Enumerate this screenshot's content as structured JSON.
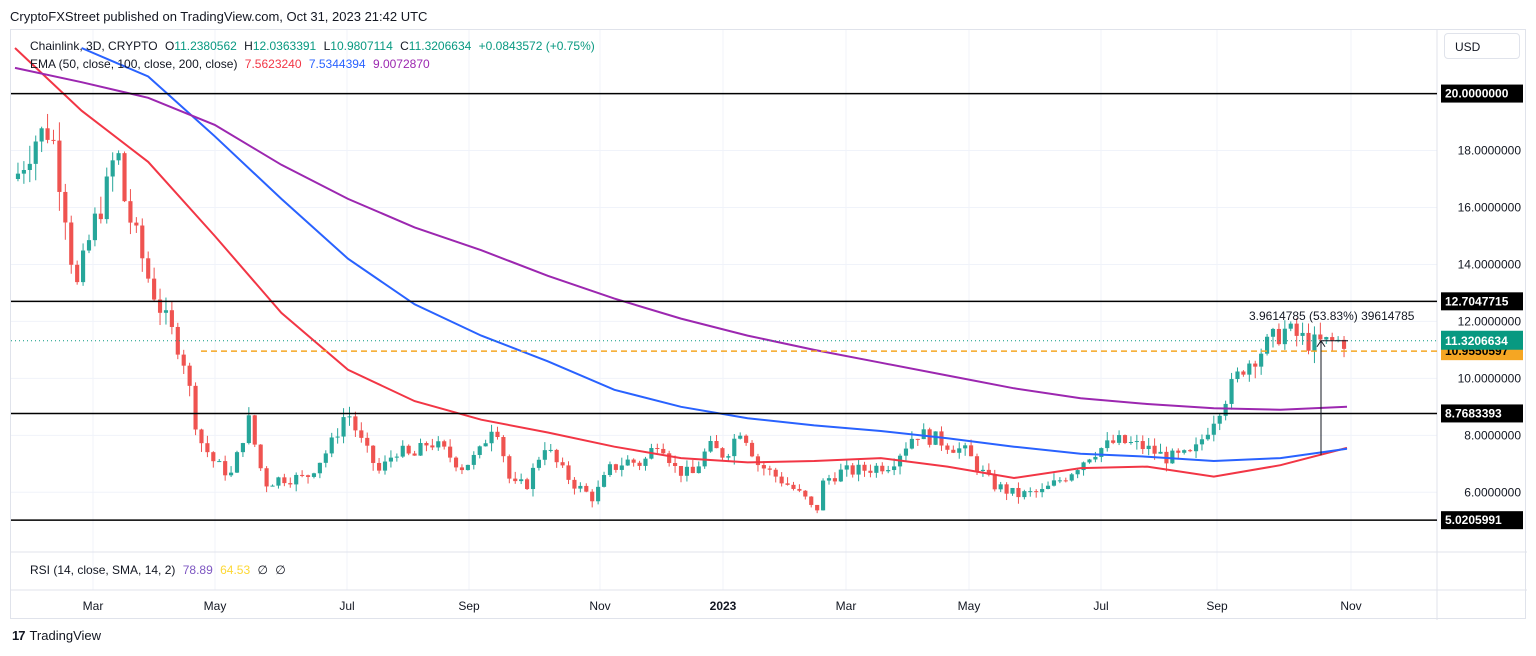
{
  "header": {
    "published_text": "CryptoFXStreet published on TradingView.com, Oct 31, 2023 21:42 UTC"
  },
  "legend": {
    "symbol": "Chainlink, 3D, CRYPTO",
    "o_label": "O",
    "o_value": "11.2380562",
    "h_label": "H",
    "h_value": "12.0363391",
    "l_label": "L",
    "l_value": "10.9807114",
    "c_label": "C",
    "c_value": "11.3206634",
    "change": "+0.0843572 (+0.75%)",
    "ema_title": "EMA (50, close, 100, close, 200, close)",
    "ema50_value": "7.5623240",
    "ema100_value": "7.5344394",
    "ema200_value": "9.0072870",
    "rsi_title": "RSI (14, close, SMA, 14, 2)",
    "rsi_value": "78.89",
    "rsi_sma_value": "64.53",
    "rsi_extra1": "∅",
    "rsi_extra2": "∅"
  },
  "currency_button": "USD",
  "measure_label": "3.9614785 (53.83%) 39614785",
  "footer": {
    "logo_text": "TradingView",
    "logo_mark": "17"
  },
  "colors": {
    "up": "#26a69a",
    "down": "#ef5350",
    "ema50": "#f23645",
    "ema100": "#2962ff",
    "ema200": "#9c27b0",
    "dashed_level": "#f5a623",
    "price_label": "#089981",
    "grid": "#f0f3fa"
  },
  "chart_data": {
    "type": "candlestick",
    "title": "Chainlink, 3D, CRYPTO",
    "y_axis": {
      "ticks": [
        "20.0000000",
        "18.0000000",
        "16.0000000",
        "14.0000000",
        "12.0000000",
        "10.0000000",
        "8.0000000",
        "6.0000000"
      ],
      "ylim": [
        4.5,
        21.6
      ]
    },
    "x_axis": {
      "ticks": [
        "Mar",
        "May",
        "Jul",
        "Sep",
        "Nov",
        "2023",
        "Mar",
        "May",
        "Jul",
        "Sep",
        "Nov"
      ],
      "bold_tick": "2023"
    },
    "horizontal_levels": [
      {
        "value": 20.0,
        "label": "20.0000000",
        "style": "solid"
      },
      {
        "value": 12.7047715,
        "label": "12.7047715",
        "style": "solid"
      },
      {
        "value": 8.7683393,
        "label": "8.7683393",
        "style": "solid"
      },
      {
        "value": 5.0205991,
        "label": "5.0205991",
        "style": "solid"
      },
      {
        "value": 10.9550597,
        "label": "10.9550597",
        "style": "dashed"
      }
    ],
    "current_price": {
      "value": 11.3206634,
      "label": "11.3206634"
    },
    "ema_series": [
      {
        "name": "EMA 50",
        "key": "ema50",
        "points": [
          [
            0.0,
            21.6
          ],
          [
            0.05,
            19.4
          ],
          [
            0.1,
            17.6
          ],
          [
            0.15,
            15.0
          ],
          [
            0.2,
            12.3
          ],
          [
            0.25,
            10.3
          ],
          [
            0.3,
            9.2
          ],
          [
            0.35,
            8.55
          ],
          [
            0.4,
            8.1
          ],
          [
            0.45,
            7.6
          ],
          [
            0.5,
            7.2
          ],
          [
            0.55,
            7.05
          ],
          [
            0.6,
            7.1
          ],
          [
            0.65,
            7.2
          ],
          [
            0.7,
            6.9
          ],
          [
            0.75,
            6.5
          ],
          [
            0.8,
            6.85
          ],
          [
            0.85,
            6.9
          ],
          [
            0.9,
            6.55
          ],
          [
            0.95,
            6.95
          ],
          [
            1.0,
            7.56
          ]
        ]
      },
      {
        "name": "EMA 100",
        "key": "ema100",
        "points": [
          [
            0.05,
            21.6
          ],
          [
            0.1,
            20.6
          ],
          [
            0.15,
            18.5
          ],
          [
            0.2,
            16.3
          ],
          [
            0.25,
            14.2
          ],
          [
            0.3,
            12.6
          ],
          [
            0.35,
            11.5
          ],
          [
            0.4,
            10.6
          ],
          [
            0.45,
            9.6
          ],
          [
            0.5,
            9.0
          ],
          [
            0.55,
            8.6
          ],
          [
            0.6,
            8.35
          ],
          [
            0.65,
            8.15
          ],
          [
            0.7,
            7.9
          ],
          [
            0.75,
            7.6
          ],
          [
            0.8,
            7.35
          ],
          [
            0.85,
            7.25
          ],
          [
            0.9,
            7.1
          ],
          [
            0.95,
            7.2
          ],
          [
            1.0,
            7.53
          ]
        ]
      },
      {
        "name": "EMA 200",
        "key": "ema200",
        "points": [
          [
            0.0,
            20.9
          ],
          [
            0.05,
            20.4
          ],
          [
            0.1,
            19.85
          ],
          [
            0.15,
            18.9
          ],
          [
            0.2,
            17.5
          ],
          [
            0.25,
            16.3
          ],
          [
            0.3,
            15.3
          ],
          [
            0.35,
            14.5
          ],
          [
            0.4,
            13.6
          ],
          [
            0.45,
            12.8
          ],
          [
            0.5,
            12.1
          ],
          [
            0.55,
            11.5
          ],
          [
            0.6,
            11.0
          ],
          [
            0.65,
            10.55
          ],
          [
            0.7,
            10.1
          ],
          [
            0.75,
            9.65
          ],
          [
            0.8,
            9.3
          ],
          [
            0.85,
            9.1
          ],
          [
            0.9,
            8.95
          ],
          [
            0.95,
            8.9
          ],
          [
            1.0,
            9.0
          ]
        ]
      }
    ],
    "price_anchors": [
      [
        0.0,
        17.2
      ],
      [
        0.02,
        18.4
      ],
      [
        0.04,
        18.8
      ],
      [
        0.06,
        15.5
      ],
      [
        0.07,
        13.0
      ],
      [
        0.09,
        15.2
      ],
      [
        0.11,
        16.8
      ],
      [
        0.12,
        18.2
      ],
      [
        0.13,
        16.2
      ],
      [
        0.16,
        13.4
      ],
      [
        0.18,
        12.0
      ],
      [
        0.2,
        10.9
      ],
      [
        0.22,
        7.9
      ],
      [
        0.24,
        7.0
      ],
      [
        0.26,
        6.6
      ],
      [
        0.28,
        8.6
      ],
      [
        0.3,
        6.3
      ],
      [
        0.32,
        6.5
      ],
      [
        0.35,
        6.5
      ],
      [
        0.38,
        7.6
      ],
      [
        0.4,
        8.9
      ],
      [
        0.42,
        7.6
      ],
      [
        0.44,
        6.7
      ],
      [
        0.46,
        7.5
      ],
      [
        0.48,
        7.2
      ],
      [
        0.5,
        7.8
      ],
      [
        0.52,
        7.4
      ],
      [
        0.54,
        6.9
      ],
      [
        0.56,
        7.3
      ],
      [
        0.58,
        8.6
      ],
      [
        0.6,
        6.2
      ],
      [
        0.62,
        6.3
      ],
      [
        0.64,
        7.7
      ],
      [
        0.66,
        6.8
      ],
      [
        0.68,
        6.2
      ],
      [
        0.7,
        5.8
      ],
      [
        0.72,
        6.8
      ],
      [
        0.74,
        7.1
      ],
      [
        0.76,
        7.0
      ],
      [
        0.78,
        7.9
      ],
      [
        0.8,
        6.8
      ],
      [
        0.82,
        6.6
      ],
      [
        0.84,
        7.6
      ],
      [
        0.86,
        7.3
      ],
      [
        0.88,
        8.3
      ],
      [
        0.9,
        7.0
      ],
      [
        0.92,
        6.6
      ],
      [
        0.94,
        6.2
      ],
      [
        0.96,
        5.7
      ],
      [
        0.97,
        5.2
      ],
      [
        0.98,
        6.4
      ],
      [
        1.0,
        6.7
      ]
    ],
    "price_anchors_2": [
      [
        0.0,
        6.7
      ],
      [
        0.05,
        6.8
      ],
      [
        0.1,
        7.0
      ],
      [
        0.15,
        8.1
      ],
      [
        0.2,
        7.8
      ],
      [
        0.25,
        7.4
      ],
      [
        0.3,
        6.3
      ],
      [
        0.35,
        5.9
      ],
      [
        0.4,
        6.0
      ],
      [
        0.45,
        6.6
      ],
      [
        0.5,
        7.4
      ],
      [
        0.55,
        7.8
      ],
      [
        0.6,
        7.6
      ],
      [
        0.65,
        7.2
      ],
      [
        0.7,
        7.3
      ],
      [
        0.75,
        8.9
      ],
      [
        0.8,
        10.4
      ],
      [
        0.88,
        11.7
      ],
      [
        0.94,
        11.2
      ],
      [
        1.0,
        11.32
      ]
    ],
    "rsi": {
      "value": 78.89,
      "sma": 64.53
    }
  }
}
